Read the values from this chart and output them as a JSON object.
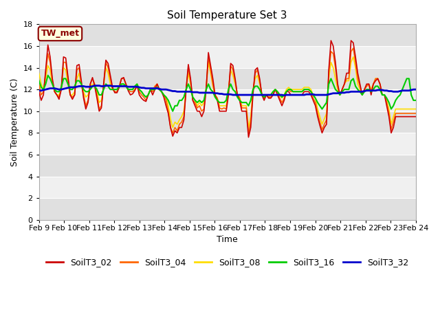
{
  "title": "Soil Temperature Set 3",
  "xlabel": "Time",
  "ylabel": "Soil Temperature (C)",
  "ylim": [
    0,
    18
  ],
  "yticks": [
    0,
    2,
    4,
    6,
    8,
    10,
    12,
    14,
    16,
    18
  ],
  "x_tick_labels": [
    "Feb 9",
    "Feb 10",
    "Feb 11",
    "Feb 12",
    "Feb 13",
    "Feb 14",
    "Feb 15",
    "Feb 16",
    "Feb 17",
    "Feb 18",
    "Feb 19",
    "Feb 20",
    "Feb 21",
    "Feb 22",
    "Feb 23",
    "Feb 24"
  ],
  "series_colors": {
    "SoilT3_02": "#cc0000",
    "SoilT3_04": "#ff6600",
    "SoilT3_08": "#ffdd00",
    "SoilT3_16": "#00cc00",
    "SoilT3_32": "#0000cc"
  },
  "series_linewidths": {
    "SoilT3_02": 1.2,
    "SoilT3_04": 1.2,
    "SoilT3_08": 1.2,
    "SoilT3_16": 1.5,
    "SoilT3_32": 2.0
  },
  "annotation_text": "TW_met",
  "fig_bg": "#ffffff",
  "plot_bg_light": "#f0f0f0",
  "plot_bg_dark": "#e0e0e0",
  "grid_color": "#ffffff",
  "days": 15,
  "hours_per_day": 24,
  "SoilT3_02": [
    11.8,
    11.0,
    11.5,
    13.8,
    16.1,
    15.0,
    13.0,
    11.8,
    11.5,
    11.1,
    12.0,
    15.0,
    14.9,
    13.2,
    11.5,
    11.1,
    11.5,
    14.2,
    14.3,
    12.8,
    11.2,
    10.2,
    10.8,
    12.5,
    13.1,
    12.3,
    11.2,
    10.0,
    10.3,
    12.5,
    14.7,
    14.4,
    13.3,
    12.2,
    11.7,
    11.7,
    12.2,
    13.0,
    13.1,
    12.5,
    11.9,
    11.5,
    11.6,
    11.9,
    12.4,
    11.5,
    11.2,
    11.0,
    10.9,
    11.5,
    12.0,
    11.5,
    12.0,
    12.5,
    12.0,
    11.8,
    11.3,
    10.5,
    9.8,
    8.5,
    7.7,
    8.2,
    8.0,
    8.5,
    8.5,
    9.2,
    12.0,
    14.3,
    13.0,
    11.0,
    10.5,
    10.0,
    10.0,
    9.5,
    10.0,
    12.0,
    15.4,
    14.2,
    13.0,
    11.5,
    11.0,
    10.0,
    10.0,
    10.0,
    10.0,
    11.5,
    14.4,
    14.2,
    13.0,
    11.5,
    11.0,
    10.0,
    10.0,
    10.0,
    7.6,
    8.5,
    11.5,
    13.8,
    14.0,
    13.0,
    11.5,
    11.0,
    11.5,
    11.2,
    11.2,
    11.5,
    12.0,
    11.5,
    11.0,
    10.5,
    11.0,
    11.8,
    11.8,
    11.5,
    11.5,
    11.5,
    11.5,
    11.5,
    11.5,
    11.8,
    11.8,
    11.8,
    11.5,
    11.0,
    10.5,
    9.5,
    8.7,
    8.0,
    8.5,
    8.8,
    13.8,
    16.5,
    16.0,
    14.5,
    12.5,
    11.5,
    12.0,
    12.5,
    13.5,
    13.5,
    16.5,
    16.3,
    15.0,
    13.5,
    12.5,
    11.5,
    12.0,
    12.5,
    12.5,
    11.5,
    12.5,
    12.8,
    13.0,
    12.5,
    11.5,
    11.5,
    10.5,
    9.5,
    8.0,
    8.5,
    9.5,
    9.5,
    9.5,
    9.5,
    9.5,
    9.5,
    9.5,
    9.5,
    9.5,
    9.5
  ],
  "SoilT3_04": [
    12.5,
    11.5,
    11.8,
    13.5,
    15.3,
    14.5,
    12.8,
    11.8,
    11.5,
    11.3,
    12.0,
    14.5,
    14.5,
    13.0,
    11.5,
    11.3,
    11.5,
    13.8,
    14.0,
    12.5,
    11.5,
    10.5,
    11.0,
    12.5,
    13.0,
    12.5,
    11.5,
    10.2,
    10.5,
    12.5,
    14.5,
    14.0,
    13.0,
    12.0,
    11.8,
    11.8,
    12.3,
    13.0,
    13.0,
    12.5,
    12.0,
    11.8,
    11.8,
    12.0,
    12.3,
    11.8,
    11.5,
    11.3,
    11.0,
    11.5,
    12.0,
    11.8,
    12.3,
    12.5,
    12.0,
    11.8,
    11.5,
    11.0,
    10.0,
    8.5,
    8.0,
    8.5,
    8.2,
    8.8,
    9.0,
    9.5,
    12.0,
    14.0,
    12.8,
    11.0,
    10.8,
    10.3,
    10.5,
    10.0,
    10.2,
    12.2,
    15.0,
    13.8,
    12.5,
    11.5,
    11.2,
    10.3,
    10.2,
    10.3,
    10.2,
    11.8,
    14.2,
    13.8,
    12.8,
    11.5,
    11.2,
    10.3,
    10.3,
    10.3,
    8.0,
    9.0,
    11.8,
    13.5,
    13.8,
    12.8,
    11.5,
    11.2,
    11.5,
    11.3,
    11.3,
    11.5,
    12.0,
    11.8,
    11.2,
    10.8,
    11.2,
    11.8,
    12.0,
    11.8,
    11.8,
    11.8,
    11.8,
    11.8,
    11.8,
    12.0,
    12.0,
    12.0,
    11.8,
    11.2,
    10.8,
    9.8,
    9.0,
    8.3,
    8.8,
    9.2,
    13.5,
    15.5,
    15.3,
    14.0,
    12.3,
    11.5,
    12.0,
    12.5,
    13.0,
    13.0,
    15.5,
    15.8,
    14.5,
    13.0,
    12.3,
    11.5,
    12.0,
    12.3,
    12.5,
    11.8,
    12.5,
    13.0,
    13.0,
    12.5,
    11.5,
    11.5,
    10.8,
    9.8,
    8.3,
    9.0,
    9.8,
    9.8,
    9.8,
    9.8,
    9.8,
    9.8,
    9.8,
    9.8,
    9.8,
    9.8
  ],
  "SoilT3_08": [
    13.5,
    12.5,
    12.0,
    13.0,
    14.2,
    13.8,
    12.5,
    11.8,
    11.5,
    11.5,
    12.2,
    14.0,
    13.8,
    12.5,
    11.5,
    11.5,
    11.8,
    13.0,
    13.5,
    12.3,
    11.8,
    11.3,
    11.5,
    12.3,
    12.5,
    12.3,
    11.8,
    10.8,
    11.0,
    12.3,
    14.0,
    13.5,
    12.5,
    12.0,
    12.0,
    12.0,
    12.3,
    12.5,
    12.5,
    12.3,
    12.0,
    12.0,
    12.0,
    12.3,
    12.5,
    12.0,
    11.8,
    11.5,
    11.3,
    11.5,
    12.0,
    12.0,
    12.3,
    12.5,
    12.0,
    11.8,
    11.5,
    11.3,
    10.5,
    9.3,
    8.5,
    9.0,
    8.8,
    9.2,
    9.5,
    10.0,
    12.0,
    13.5,
    12.5,
    11.3,
    11.0,
    10.5,
    10.8,
    10.5,
    10.8,
    12.0,
    14.5,
    13.5,
    12.3,
    11.5,
    11.2,
    10.5,
    10.5,
    10.5,
    10.5,
    12.0,
    13.8,
    13.3,
    12.5,
    11.5,
    11.3,
    10.5,
    10.5,
    10.5,
    8.5,
    9.5,
    12.0,
    13.0,
    13.3,
    12.5,
    11.5,
    11.3,
    11.5,
    11.3,
    11.5,
    11.8,
    12.0,
    11.8,
    11.5,
    11.2,
    11.5,
    12.0,
    12.2,
    12.0,
    12.0,
    12.0,
    12.0,
    12.0,
    12.0,
    12.2,
    12.2,
    12.2,
    12.0,
    11.5,
    11.2,
    10.2,
    9.5,
    8.8,
    9.3,
    9.8,
    13.0,
    14.5,
    14.0,
    13.0,
    12.0,
    11.5,
    12.0,
    12.5,
    12.8,
    12.8,
    14.5,
    15.0,
    14.0,
    12.5,
    12.0,
    11.5,
    12.0,
    12.3,
    12.5,
    12.0,
    12.5,
    13.0,
    13.0,
    12.5,
    11.5,
    11.5,
    11.0,
    10.2,
    8.8,
    9.5,
    10.2,
    10.2,
    10.2,
    10.2,
    10.2,
    10.2,
    10.2,
    10.2,
    10.2,
    10.2
  ],
  "SoilT3_16": [
    12.8,
    12.2,
    12.0,
    12.5,
    13.3,
    13.0,
    12.5,
    12.0,
    11.8,
    11.8,
    12.2,
    13.0,
    13.0,
    12.5,
    12.0,
    12.0,
    12.3,
    12.8,
    12.8,
    12.5,
    12.0,
    11.8,
    11.8,
    12.0,
    12.3,
    12.3,
    12.0,
    11.5,
    11.5,
    12.0,
    12.5,
    12.3,
    12.0,
    12.0,
    12.0,
    12.0,
    12.3,
    12.5,
    12.5,
    12.3,
    12.0,
    12.0,
    12.0,
    12.3,
    12.5,
    12.0,
    11.8,
    11.5,
    11.3,
    11.5,
    12.0,
    12.0,
    12.0,
    12.2,
    12.0,
    11.8,
    11.5,
    11.3,
    11.0,
    10.5,
    10.0,
    10.5,
    10.5,
    11.0,
    11.0,
    11.3,
    12.0,
    12.5,
    12.0,
    11.3,
    11.0,
    10.8,
    11.0,
    10.8,
    11.0,
    12.0,
    12.5,
    12.0,
    11.8,
    11.3,
    11.0,
    10.8,
    10.8,
    10.8,
    11.0,
    12.0,
    12.5,
    12.0,
    11.8,
    11.3,
    11.0,
    10.8,
    10.8,
    10.8,
    10.5,
    11.0,
    12.0,
    12.3,
    12.3,
    12.0,
    11.5,
    11.3,
    11.5,
    11.5,
    11.5,
    11.8,
    12.0,
    11.8,
    11.5,
    11.3,
    11.5,
    11.8,
    12.0,
    12.0,
    11.8,
    11.8,
    11.8,
    11.8,
    11.8,
    12.0,
    12.0,
    12.0,
    11.8,
    11.5,
    11.2,
    10.8,
    10.5,
    10.2,
    10.5,
    10.8,
    12.5,
    13.0,
    12.5,
    12.0,
    11.8,
    11.5,
    11.8,
    12.0,
    12.0,
    12.0,
    12.8,
    13.0,
    12.3,
    12.0,
    11.8,
    11.5,
    11.8,
    12.0,
    12.0,
    11.8,
    12.0,
    12.3,
    12.3,
    12.0,
    11.5,
    11.5,
    11.2,
    10.8,
    10.2,
    10.5,
    11.0,
    11.3,
    11.5,
    12.0,
    12.5,
    13.0,
    13.0,
    11.5,
    11.0,
    11.0
  ],
  "SoilT3_32": [
    11.9,
    11.9,
    11.95,
    12.0,
    12.05,
    12.1,
    12.1,
    12.1,
    12.05,
    12.0,
    12.0,
    12.05,
    12.1,
    12.15,
    12.2,
    12.2,
    12.2,
    12.25,
    12.3,
    12.3,
    12.3,
    12.25,
    12.25,
    12.25,
    12.3,
    12.35,
    12.35,
    12.35,
    12.3,
    12.3,
    12.35,
    12.35,
    12.35,
    12.3,
    12.3,
    12.3,
    12.3,
    12.3,
    12.3,
    12.3,
    12.25,
    12.25,
    12.25,
    12.25,
    12.25,
    12.2,
    12.15,
    12.15,
    12.1,
    12.1,
    12.1,
    12.1,
    12.1,
    12.1,
    12.05,
    12.0,
    12.0,
    12.0,
    11.95,
    11.9,
    11.85,
    11.85,
    11.8,
    11.8,
    11.8,
    11.8,
    11.8,
    11.8,
    11.8,
    11.75,
    11.75,
    11.75,
    11.7,
    11.7,
    11.7,
    11.7,
    11.7,
    11.7,
    11.7,
    11.65,
    11.65,
    11.6,
    11.6,
    11.55,
    11.55,
    11.55,
    11.55,
    11.5,
    11.5,
    11.5,
    11.5,
    11.5,
    11.5,
    11.5,
    11.5,
    11.5,
    11.5,
    11.5,
    11.5,
    11.5,
    11.5,
    11.5,
    11.5,
    11.5,
    11.5,
    11.5,
    11.5,
    11.5,
    11.5,
    11.5,
    11.45,
    11.5,
    11.5,
    11.5,
    11.5,
    11.5,
    11.5,
    11.5,
    11.5,
    11.5,
    11.55,
    11.55,
    11.55,
    11.55,
    11.5,
    11.5,
    11.5,
    11.5,
    11.5,
    11.5,
    11.55,
    11.6,
    11.65,
    11.65,
    11.65,
    11.7,
    11.7,
    11.7,
    11.75,
    11.75,
    11.8,
    11.8,
    11.8,
    11.8,
    11.8,
    11.8,
    11.85,
    11.9,
    11.9,
    11.9,
    11.9,
    11.9,
    11.95,
    11.95,
    11.95,
    11.9,
    11.9,
    11.85,
    11.85,
    11.8,
    11.8,
    11.8,
    11.85,
    11.9,
    11.9,
    11.9,
    11.9,
    11.95,
    12.0,
    12.0
  ]
}
